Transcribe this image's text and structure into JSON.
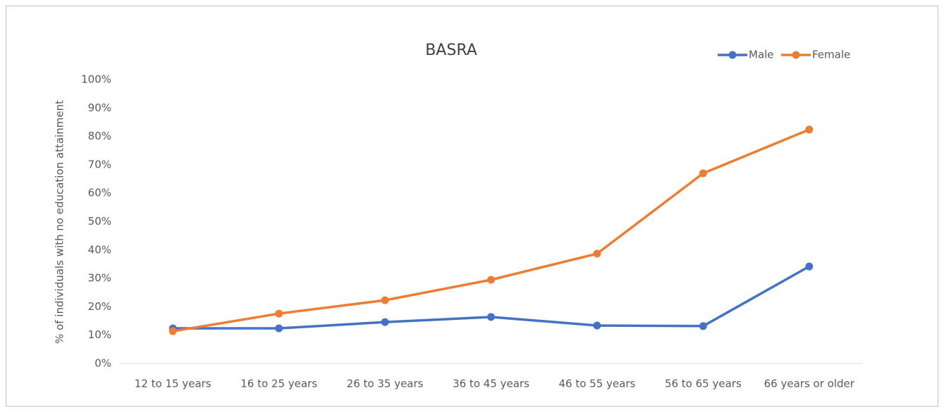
{
  "chart_data": {
    "type": "line",
    "title": "BASRA",
    "y_label": "% of individuals with no education attainment",
    "categories": [
      "12 to 15 years",
      "16 to 25 years",
      "26 to 35 years",
      "36 to 45 years",
      "46 to 55 years",
      "56 to 65 years",
      "66 years or older"
    ],
    "series": [
      {
        "name": "Male",
        "color": "#4472c4",
        "values": [
          12.4,
          12.4,
          14.6,
          16.4,
          13.4,
          13.2,
          34.2
        ]
      },
      {
        "name": "Female",
        "color": "#ed7d31",
        "values": [
          11.4,
          17.6,
          22.3,
          29.5,
          38.7,
          67,
          82.4
        ]
      }
    ],
    "ylim": [
      0,
      100
    ],
    "yticks": [
      {
        "value": 0,
        "label": "0%"
      },
      {
        "value": 10,
        "label": "10%"
      },
      {
        "value": 20,
        "label": "20%"
      },
      {
        "value": 30,
        "label": "30%"
      },
      {
        "value": 40,
        "label": "40%"
      },
      {
        "value": 50,
        "label": "50%"
      },
      {
        "value": 60,
        "label": "60%"
      },
      {
        "value": 70,
        "label": "70%"
      },
      {
        "value": 80,
        "label": "80%"
      },
      {
        "value": 90,
        "label": "90%"
      },
      {
        "value": 100,
        "label": "100%"
      }
    ],
    "grid": false,
    "legend": "top-right"
  }
}
